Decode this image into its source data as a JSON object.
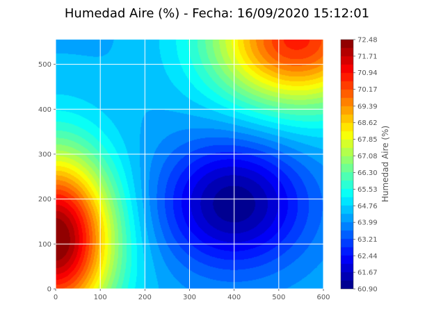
{
  "chart_data": {
    "type": "heatmap",
    "style": "filled-contour",
    "title": "Humedad Aire (%) - Fecha: 16/09/2020 15:12:01",
    "xlabel": "",
    "ylabel": "",
    "xlim": [
      0,
      600
    ],
    "ylim": [
      0,
      555
    ],
    "x_ticks": [
      0,
      100,
      200,
      300,
      400,
      500,
      600
    ],
    "y_ticks": [
      0,
      100,
      200,
      300,
      400,
      500
    ],
    "grid": true,
    "colormap": "jet",
    "colorbar": {
      "label": "Humedad Aire (%)",
      "min": 60.9,
      "max": 72.48,
      "ticks": [
        "72.48",
        "71.71",
        "70.94",
        "70.17",
        "69.39",
        "68.62",
        "67.85",
        "67.08",
        "66.30",
        "65.53",
        "64.76",
        "63.99",
        "63.21",
        "62.44",
        "61.67",
        "60.90"
      ],
      "levels": 30
    },
    "field": {
      "base": 64.3,
      "features": [
        {
          "kind": "max",
          "x": 0,
          "y": 110,
          "amplitude": 8.3,
          "sx": 130,
          "sy": 190
        },
        {
          "kind": "max",
          "x": 540,
          "y": 555,
          "amplitude": 6.4,
          "sx": 190,
          "sy": 150
        },
        {
          "kind": "min",
          "x": 400,
          "y": 190,
          "amplitude": 3.3,
          "sx": 160,
          "sy": 140
        }
      ]
    }
  }
}
